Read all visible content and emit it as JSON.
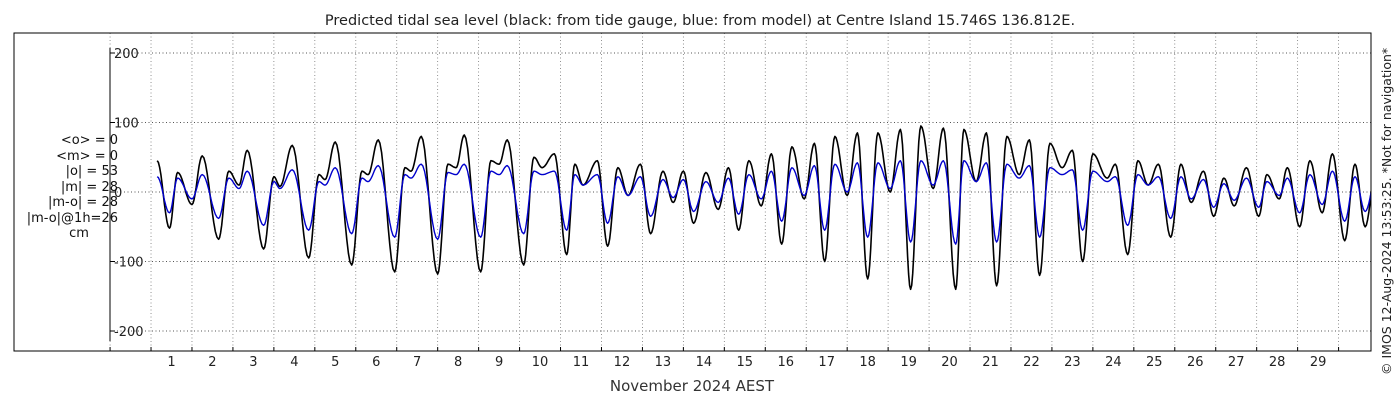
{
  "chart_data": {
    "type": "line",
    "title": "Predicted tidal sea level (black: from tide gauge, blue: from model) at Centre Island 15.746S 136.812E.",
    "xlabel": "November 2024 AEST",
    "ylabel": "",
    "x_range_days": [
      -1.35,
      30.3
    ],
    "ylim": [
      -230,
      230
    ],
    "y_ticks": [
      "200",
      "100",
      "0",
      "-100",
      "-200"
    ],
    "y_tick_values": [
      200,
      100,
      0,
      -100,
      -200
    ],
    "x_ticks": [
      "1",
      "2",
      "3",
      "4",
      "5",
      "6",
      "7",
      "8",
      "9",
      "10",
      "11",
      "12",
      "13",
      "14",
      "15",
      "16",
      "17",
      "18",
      "19",
      "20",
      "21",
      "22",
      "23",
      "24",
      "25",
      "26",
      "27",
      "28",
      "29"
    ],
    "grid": true,
    "series": [
      {
        "name": "from tide gauge",
        "color": "#000000",
        "extremes": [
          [
            0.1,
            45
          ],
          [
            0.4,
            -52
          ],
          [
            0.6,
            28
          ],
          [
            0.95,
            -18
          ],
          [
            1.2,
            52
          ],
          [
            1.6,
            -68
          ],
          [
            1.85,
            30
          ],
          [
            2.1,
            10
          ],
          [
            2.3,
            60
          ],
          [
            2.7,
            -82
          ],
          [
            2.95,
            22
          ],
          [
            3.1,
            8
          ],
          [
            3.4,
            67
          ],
          [
            3.8,
            -95
          ],
          [
            4.05,
            25
          ],
          [
            4.2,
            18
          ],
          [
            4.45,
            72
          ],
          [
            4.85,
            -105
          ],
          [
            5.1,
            30
          ],
          [
            5.25,
            25
          ],
          [
            5.5,
            75
          ],
          [
            5.9,
            -115
          ],
          [
            6.15,
            35
          ],
          [
            6.3,
            30
          ],
          [
            6.55,
            80
          ],
          [
            6.95,
            -118
          ],
          [
            7.2,
            40
          ],
          [
            7.4,
            35
          ],
          [
            7.6,
            82
          ],
          [
            8.0,
            -115
          ],
          [
            8.25,
            45
          ],
          [
            8.45,
            40
          ],
          [
            8.65,
            75
          ],
          [
            9.05,
            -105
          ],
          [
            9.3,
            50
          ],
          [
            9.5,
            35
          ],
          [
            9.8,
            55
          ],
          [
            10.1,
            -90
          ],
          [
            10.3,
            40
          ],
          [
            10.5,
            10
          ],
          [
            10.85,
            45
          ],
          [
            11.1,
            -78
          ],
          [
            11.35,
            35
          ],
          [
            11.6,
            -5
          ],
          [
            11.9,
            40
          ],
          [
            12.15,
            -60
          ],
          [
            12.45,
            30
          ],
          [
            12.7,
            -15
          ],
          [
            12.95,
            30
          ],
          [
            13.2,
            -45
          ],
          [
            13.5,
            28
          ],
          [
            13.8,
            -25
          ],
          [
            14.05,
            35
          ],
          [
            14.3,
            -55
          ],
          [
            14.55,
            45
          ],
          [
            14.85,
            -20
          ],
          [
            15.1,
            55
          ],
          [
            15.35,
            -75
          ],
          [
            15.6,
            65
          ],
          [
            15.9,
            -10
          ],
          [
            16.15,
            70
          ],
          [
            16.4,
            -100
          ],
          [
            16.65,
            80
          ],
          [
            16.95,
            -5
          ],
          [
            17.2,
            85
          ],
          [
            17.45,
            -125
          ],
          [
            17.7,
            85
          ],
          [
            18.0,
            0
          ],
          [
            18.25,
            90
          ],
          [
            18.5,
            -140
          ],
          [
            18.75,
            95
          ],
          [
            19.05,
            5
          ],
          [
            19.3,
            92
          ],
          [
            19.6,
            -140
          ],
          [
            19.8,
            90
          ],
          [
            20.1,
            15
          ],
          [
            20.35,
            85
          ],
          [
            20.6,
            -135
          ],
          [
            20.85,
            80
          ],
          [
            21.15,
            25
          ],
          [
            21.4,
            75
          ],
          [
            21.65,
            -120
          ],
          [
            21.9,
            70
          ],
          [
            22.2,
            35
          ],
          [
            22.45,
            60
          ],
          [
            22.7,
            -100
          ],
          [
            22.95,
            55
          ],
          [
            23.3,
            20
          ],
          [
            23.5,
            40
          ],
          [
            23.8,
            -90
          ],
          [
            24.05,
            45
          ],
          [
            24.3,
            10
          ],
          [
            24.55,
            40
          ],
          [
            24.85,
            -65
          ],
          [
            25.1,
            40
          ],
          [
            25.35,
            -15
          ],
          [
            25.65,
            30
          ],
          [
            25.9,
            -35
          ],
          [
            26.15,
            20
          ],
          [
            26.4,
            -20
          ],
          [
            26.7,
            35
          ],
          [
            27.0,
            -35
          ],
          [
            27.2,
            25
          ],
          [
            27.5,
            -10
          ],
          [
            27.7,
            35
          ],
          [
            28.0,
            -50
          ],
          [
            28.25,
            45
          ],
          [
            28.55,
            -30
          ],
          [
            28.8,
            55
          ],
          [
            29.1,
            -70
          ],
          [
            29.35,
            40
          ],
          [
            29.6,
            -50
          ],
          [
            29.9,
            55
          ],
          [
            30.3,
            60
          ]
        ]
      },
      {
        "name": "from model",
        "color": "#0000cc",
        "extremes": [
          [
            0.1,
            22
          ],
          [
            0.4,
            -30
          ],
          [
            0.6,
            20
          ],
          [
            0.95,
            -10
          ],
          [
            1.2,
            25
          ],
          [
            1.6,
            -38
          ],
          [
            1.85,
            20
          ],
          [
            2.1,
            5
          ],
          [
            2.3,
            30
          ],
          [
            2.7,
            -48
          ],
          [
            2.95,
            15
          ],
          [
            3.1,
            5
          ],
          [
            3.4,
            32
          ],
          [
            3.8,
            -55
          ],
          [
            4.05,
            15
          ],
          [
            4.2,
            10
          ],
          [
            4.45,
            35
          ],
          [
            4.85,
            -60
          ],
          [
            5.1,
            20
          ],
          [
            5.25,
            15
          ],
          [
            5.5,
            38
          ],
          [
            5.9,
            -65
          ],
          [
            6.15,
            25
          ],
          [
            6.3,
            20
          ],
          [
            6.55,
            40
          ],
          [
            6.95,
            -68
          ],
          [
            7.2,
            28
          ],
          [
            7.4,
            25
          ],
          [
            7.6,
            40
          ],
          [
            8.0,
            -65
          ],
          [
            8.25,
            30
          ],
          [
            8.45,
            25
          ],
          [
            8.65,
            38
          ],
          [
            9.05,
            -60
          ],
          [
            9.3,
            30
          ],
          [
            9.5,
            25
          ],
          [
            9.8,
            30
          ],
          [
            10.1,
            -55
          ],
          [
            10.3,
            25
          ],
          [
            10.5,
            10
          ],
          [
            10.85,
            25
          ],
          [
            11.1,
            -45
          ],
          [
            11.35,
            22
          ],
          [
            11.6,
            -5
          ],
          [
            11.9,
            22
          ],
          [
            12.15,
            -35
          ],
          [
            12.45,
            18
          ],
          [
            12.7,
            -8
          ],
          [
            12.95,
            18
          ],
          [
            13.2,
            -28
          ],
          [
            13.5,
            15
          ],
          [
            13.8,
            -15
          ],
          [
            14.05,
            20
          ],
          [
            14.3,
            -32
          ],
          [
            14.55,
            25
          ],
          [
            14.85,
            -10
          ],
          [
            15.1,
            30
          ],
          [
            15.35,
            -42
          ],
          [
            15.6,
            35
          ],
          [
            15.9,
            -5
          ],
          [
            16.15,
            38
          ],
          [
            16.4,
            -55
          ],
          [
            16.65,
            40
          ],
          [
            16.95,
            0
          ],
          [
            17.2,
            42
          ],
          [
            17.45,
            -65
          ],
          [
            17.7,
            42
          ],
          [
            18.0,
            5
          ],
          [
            18.25,
            45
          ],
          [
            18.5,
            -72
          ],
          [
            18.75,
            45
          ],
          [
            19.05,
            10
          ],
          [
            19.3,
            45
          ],
          [
            19.6,
            -75
          ],
          [
            19.8,
            45
          ],
          [
            20.1,
            15
          ],
          [
            20.35,
            42
          ],
          [
            20.6,
            -72
          ],
          [
            20.85,
            40
          ],
          [
            21.15,
            20
          ],
          [
            21.4,
            38
          ],
          [
            21.65,
            -65
          ],
          [
            21.9,
            35
          ],
          [
            22.2,
            25
          ],
          [
            22.45,
            32
          ],
          [
            22.7,
            -55
          ],
          [
            22.95,
            30
          ],
          [
            23.3,
            15
          ],
          [
            23.5,
            22
          ],
          [
            23.8,
            -48
          ],
          [
            24.05,
            25
          ],
          [
            24.3,
            10
          ],
          [
            24.55,
            22
          ],
          [
            24.85,
            -38
          ],
          [
            25.1,
            22
          ],
          [
            25.35,
            -10
          ],
          [
            25.65,
            18
          ],
          [
            25.9,
            -22
          ],
          [
            26.15,
            12
          ],
          [
            26.4,
            -12
          ],
          [
            26.7,
            20
          ],
          [
            27.0,
            -22
          ],
          [
            27.2,
            15
          ],
          [
            27.5,
            -5
          ],
          [
            27.7,
            20
          ],
          [
            28.0,
            -30
          ],
          [
            28.25,
            25
          ],
          [
            28.55,
            -18
          ],
          [
            28.8,
            30
          ],
          [
            29.1,
            -42
          ],
          [
            29.35,
            22
          ],
          [
            29.6,
            -28
          ],
          [
            29.9,
            30
          ],
          [
            30.3,
            35
          ]
        ]
      }
    ]
  },
  "stats": {
    "mean_o": "<o> = 0",
    "mean_m": "<m> = 0",
    "abs_o": "|o| = 53",
    "abs_m": "|m| = 28",
    "abs_m_o": "|m-o| = 28",
    "abs_m_o_1h": "|m-o|@1h=26",
    "unit": "cm"
  },
  "side_note": "© IMOS 12-Aug-2024 13:53:25. *Not for navigation*"
}
